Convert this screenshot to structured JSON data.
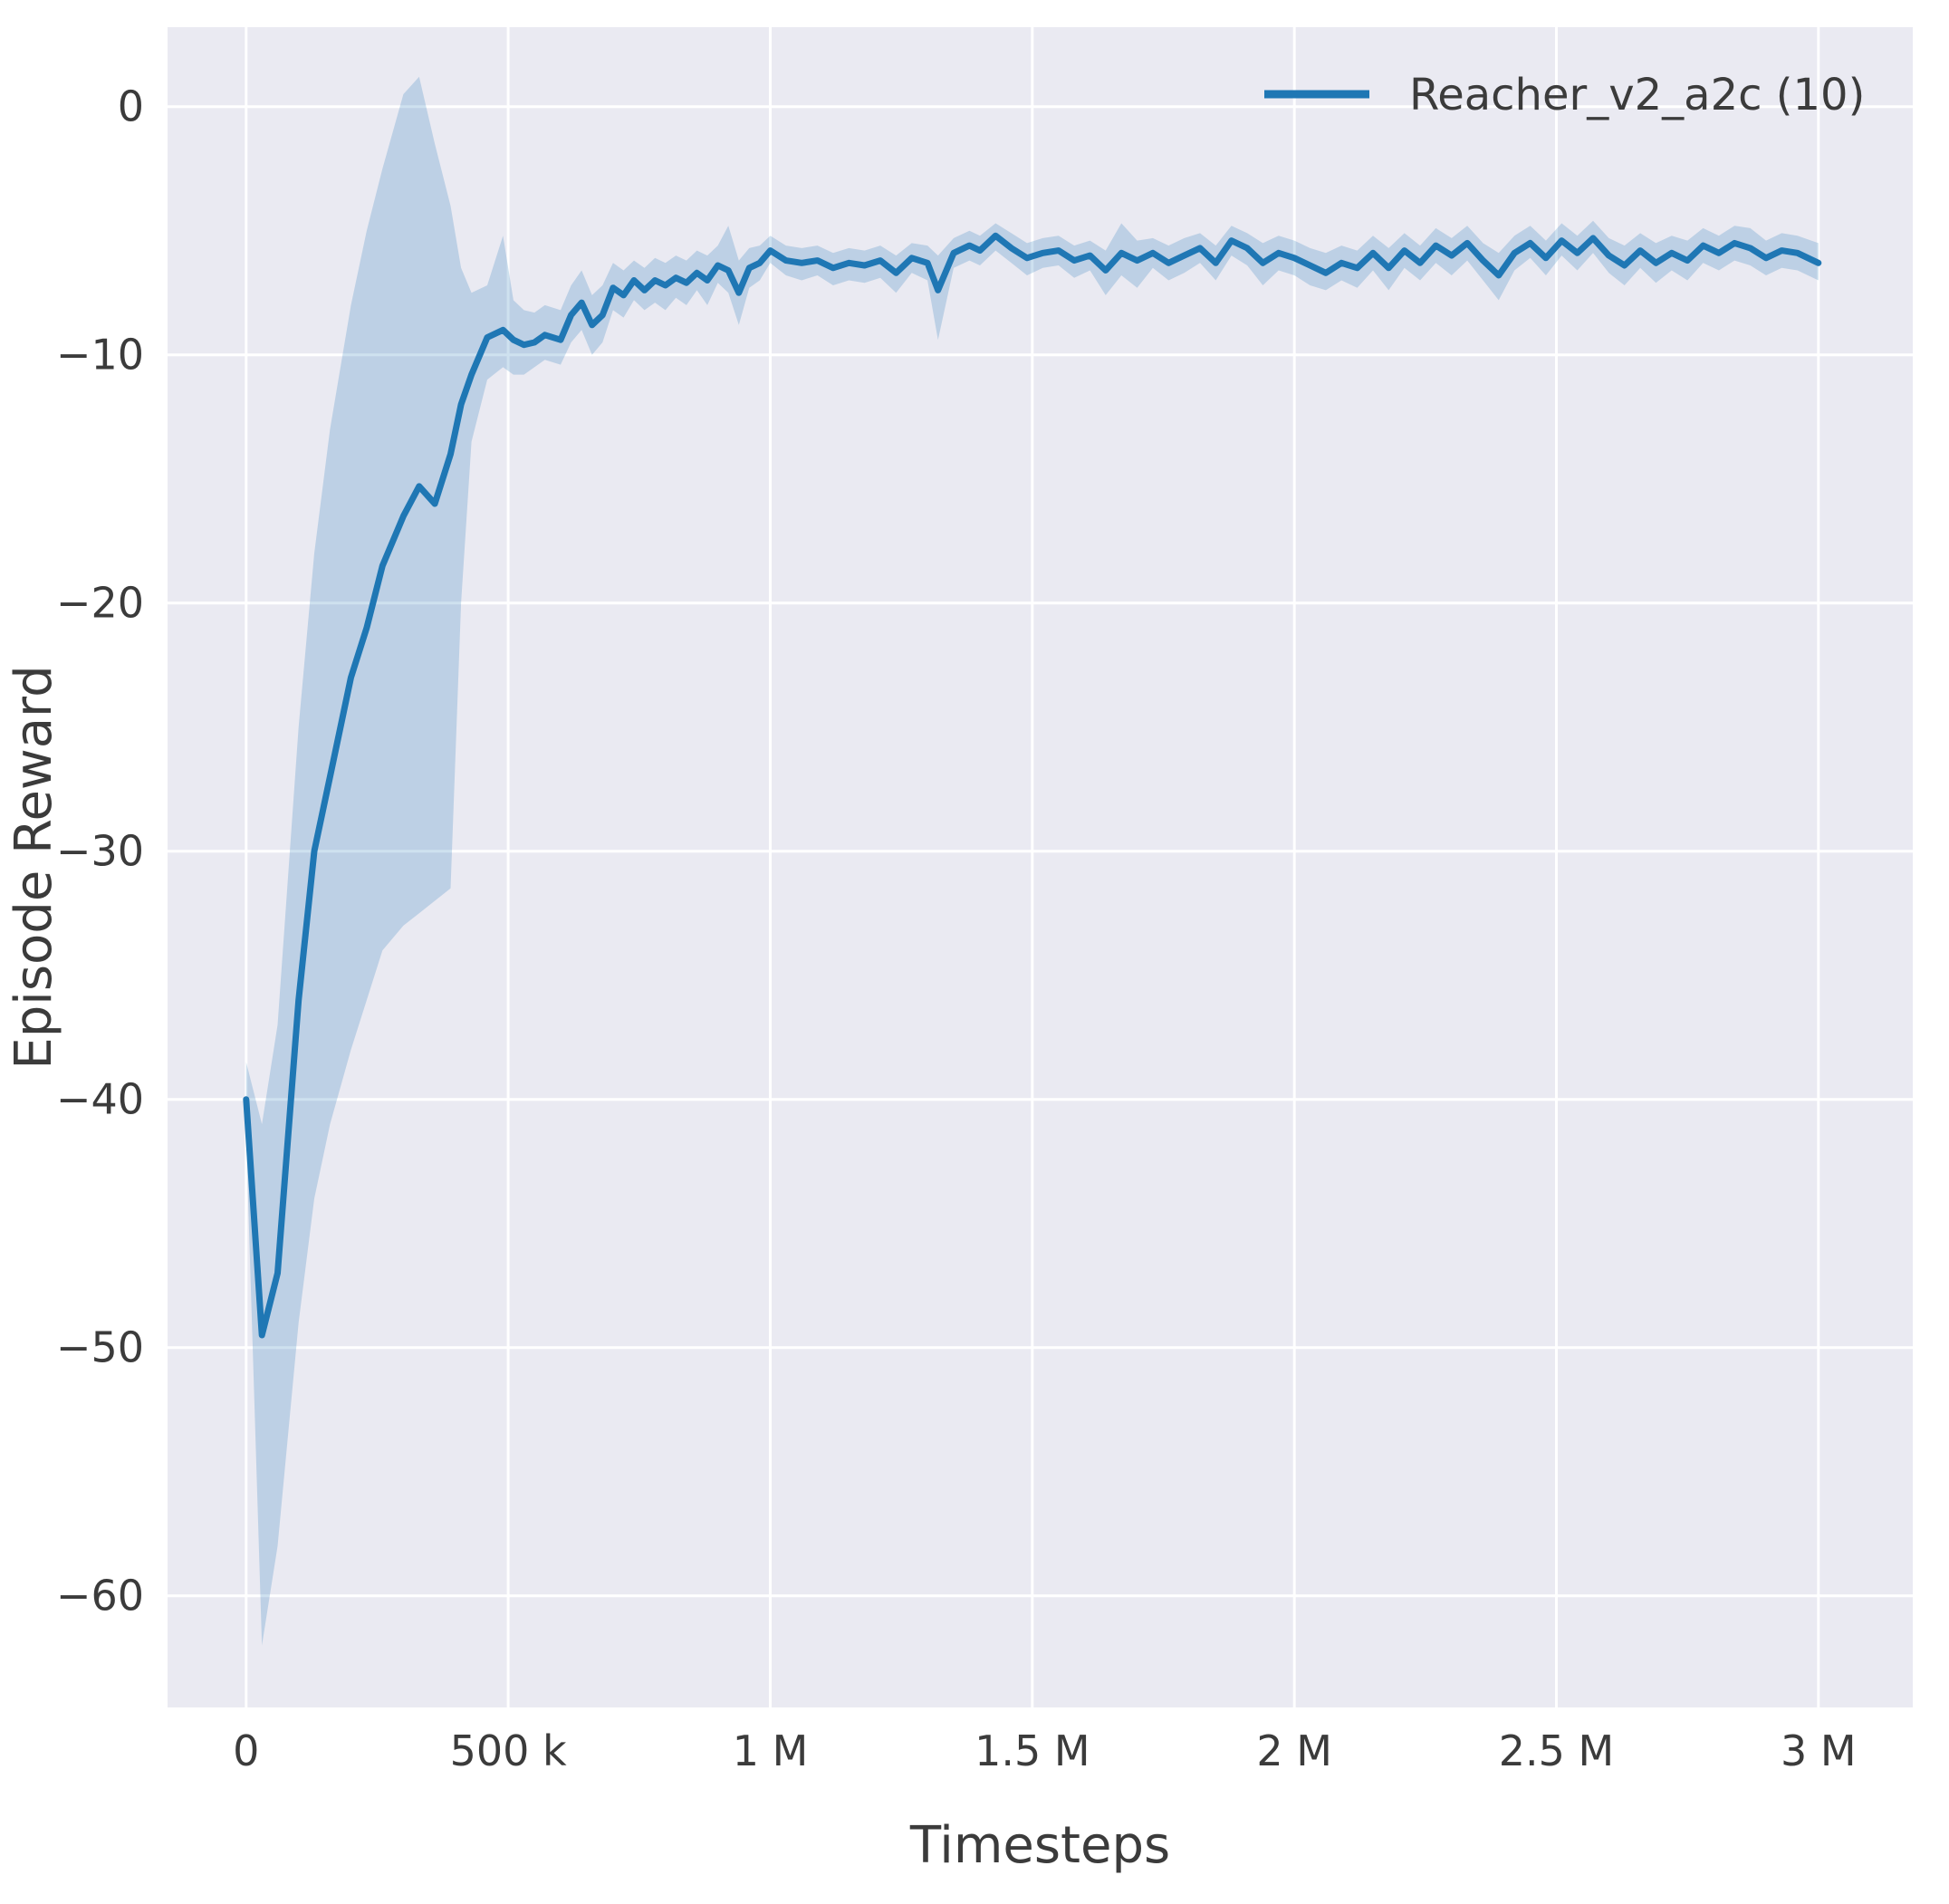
{
  "chart_data": {
    "type": "line",
    "title": "",
    "xlabel": "Timesteps",
    "ylabel": "Episode Reward",
    "grid": true,
    "legend_position": "upper right",
    "legend": [
      {
        "name": "Reacher_v2_a2c (10)",
        "color": "#1f77b4"
      }
    ],
    "colors": {
      "line": "#1f77b4",
      "plot_bg": "#eaeaf2",
      "figure_bg": "#ffffff",
      "grid": "#ffffff",
      "text": "#3b3b3b"
    },
    "xlim": [
      -150000,
      3180000
    ],
    "ylim": [
      -64.5,
      3.2
    ],
    "xticks": [
      {
        "v": 0,
        "label": "0"
      },
      {
        "v": 500000,
        "label": "500 k"
      },
      {
        "v": 1000000,
        "label": "1 M"
      },
      {
        "v": 1500000,
        "label": "1.5 M"
      },
      {
        "v": 2000000,
        "label": "2 M"
      },
      {
        "v": 2500000,
        "label": "2.5 M"
      },
      {
        "v": 3000000,
        "label": "3 M"
      }
    ],
    "yticks": [
      {
        "v": 0,
        "label": "0"
      },
      {
        "v": -10,
        "label": "−10"
      },
      {
        "v": -20,
        "label": "−20"
      },
      {
        "v": -30,
        "label": "−30"
      },
      {
        "v": -40,
        "label": "−40"
      },
      {
        "v": -50,
        "label": "−50"
      },
      {
        "v": -60,
        "label": "−60"
      }
    ],
    "series": [
      {
        "name": "Reacher_v2_a2c (10)",
        "color": "#1f77b4",
        "band_opacity": 0.22,
        "points_format": [
          "x_timesteps",
          "mean",
          "lower",
          "upper"
        ],
        "points": [
          [
            0,
            -40.0,
            -41.5,
            -38.5
          ],
          [
            30000,
            -49.5,
            -62.0,
            -41.0
          ],
          [
            60000,
            -47.0,
            -58.0,
            -37.0
          ],
          [
            100000,
            -36.0,
            -49.0,
            -25.0
          ],
          [
            130000,
            -30.0,
            -44.0,
            -18.0
          ],
          [
            160000,
            -27.0,
            -41.0,
            -13.0
          ],
          [
            200000,
            -23.0,
            -38.0,
            -8.0
          ],
          [
            230000,
            -21.0,
            -36.0,
            -5.0
          ],
          [
            260000,
            -18.5,
            -34.0,
            -2.5
          ],
          [
            300000,
            -16.5,
            -33.0,
            0.5
          ],
          [
            330000,
            -15.3,
            -32.5,
            1.2
          ],
          [
            360000,
            -16.0,
            -32.0,
            -1.5
          ],
          [
            390000,
            -14.0,
            -31.5,
            -4.0
          ],
          [
            410000,
            -12.0,
            -20.0,
            -6.5
          ],
          [
            430000,
            -10.8,
            -13.5,
            -7.5
          ],
          [
            460000,
            -9.3,
            -11.0,
            -7.2
          ],
          [
            490000,
            -9.0,
            -10.5,
            -5.2
          ],
          [
            510000,
            -9.4,
            -10.8,
            -7.8
          ],
          [
            530000,
            -9.6,
            -10.8,
            -8.2
          ],
          [
            550000,
            -9.5,
            -10.5,
            -8.3
          ],
          [
            570000,
            -9.2,
            -10.2,
            -8.0
          ],
          [
            600000,
            -9.4,
            -10.4,
            -8.2
          ],
          [
            620000,
            -8.4,
            -9.5,
            -7.2
          ],
          [
            640000,
            -7.9,
            -9.0,
            -6.6
          ],
          [
            660000,
            -8.8,
            -10.0,
            -7.6
          ],
          [
            680000,
            -8.4,
            -9.5,
            -7.2
          ],
          [
            700000,
            -7.3,
            -8.2,
            -6.3
          ],
          [
            720000,
            -7.6,
            -8.5,
            -6.6
          ],
          [
            740000,
            -7.0,
            -7.8,
            -6.2
          ],
          [
            760000,
            -7.4,
            -8.2,
            -6.5
          ],
          [
            780000,
            -7.0,
            -7.9,
            -6.1
          ],
          [
            800000,
            -7.2,
            -8.2,
            -6.3
          ],
          [
            820000,
            -6.9,
            -7.7,
            -6.0
          ],
          [
            840000,
            -7.1,
            -8.0,
            -6.2
          ],
          [
            860000,
            -6.7,
            -7.4,
            -5.8
          ],
          [
            880000,
            -7.0,
            -8.0,
            -6.0
          ],
          [
            900000,
            -6.4,
            -7.1,
            -5.6
          ],
          [
            920000,
            -6.6,
            -7.5,
            -4.8
          ],
          [
            940000,
            -7.5,
            -8.8,
            -6.2
          ],
          [
            960000,
            -6.5,
            -7.3,
            -5.7
          ],
          [
            980000,
            -6.3,
            -7.0,
            -5.6
          ],
          [
            1000000,
            -5.8,
            -6.3,
            -5.2
          ],
          [
            1030000,
            -6.2,
            -6.8,
            -5.6
          ],
          [
            1060000,
            -6.3,
            -7.0,
            -5.7
          ],
          [
            1090000,
            -6.2,
            -6.8,
            -5.6
          ],
          [
            1120000,
            -6.5,
            -7.2,
            -5.9
          ],
          [
            1150000,
            -6.3,
            -7.0,
            -5.7
          ],
          [
            1180000,
            -6.4,
            -7.1,
            -5.8
          ],
          [
            1210000,
            -6.2,
            -6.9,
            -5.6
          ],
          [
            1240000,
            -6.7,
            -7.5,
            -6.0
          ],
          [
            1270000,
            -6.1,
            -6.7,
            -5.5
          ],
          [
            1300000,
            -6.3,
            -7.0,
            -5.6
          ],
          [
            1320000,
            -7.4,
            -9.4,
            -6.0
          ],
          [
            1350000,
            -5.9,
            -6.5,
            -5.3
          ],
          [
            1380000,
            -5.6,
            -6.2,
            -5.0
          ],
          [
            1400000,
            -5.8,
            -6.4,
            -5.2
          ],
          [
            1430000,
            -5.2,
            -5.8,
            -4.7
          ],
          [
            1460000,
            -5.7,
            -6.3,
            -5.1
          ],
          [
            1490000,
            -6.1,
            -6.8,
            -5.5
          ],
          [
            1520000,
            -5.9,
            -6.5,
            -5.3
          ],
          [
            1550000,
            -5.8,
            -6.4,
            -5.2
          ],
          [
            1580000,
            -6.2,
            -6.9,
            -5.6
          ],
          [
            1610000,
            -6.0,
            -6.6,
            -5.4
          ],
          [
            1640000,
            -6.6,
            -7.6,
            -5.8
          ],
          [
            1670000,
            -5.9,
            -6.8,
            -4.7
          ],
          [
            1700000,
            -6.2,
            -7.3,
            -5.4
          ],
          [
            1730000,
            -5.9,
            -6.5,
            -5.3
          ],
          [
            1760000,
            -6.3,
            -7.0,
            -5.6
          ],
          [
            1790000,
            -6.0,
            -6.7,
            -5.3
          ],
          [
            1820000,
            -5.7,
            -6.3,
            -5.1
          ],
          [
            1850000,
            -6.3,
            -7.0,
            -5.6
          ],
          [
            1880000,
            -5.4,
            -6.0,
            -4.8
          ],
          [
            1910000,
            -5.7,
            -6.4,
            -5.1
          ],
          [
            1940000,
            -6.3,
            -7.2,
            -5.5
          ],
          [
            1970000,
            -5.9,
            -6.6,
            -5.2
          ],
          [
            2000000,
            -6.1,
            -6.8,
            -5.4
          ],
          [
            2030000,
            -6.4,
            -7.2,
            -5.7
          ],
          [
            2060000,
            -6.7,
            -7.4,
            -5.9
          ],
          [
            2090000,
            -6.3,
            -7.0,
            -5.6
          ],
          [
            2120000,
            -6.5,
            -7.3,
            -5.8
          ],
          [
            2150000,
            -5.9,
            -6.6,
            -5.2
          ],
          [
            2180000,
            -6.5,
            -7.4,
            -5.7
          ],
          [
            2210000,
            -5.8,
            -6.5,
            -5.1
          ],
          [
            2240000,
            -6.3,
            -7.0,
            -5.6
          ],
          [
            2270000,
            -5.6,
            -6.3,
            -4.9
          ],
          [
            2300000,
            -6.0,
            -6.8,
            -5.3
          ],
          [
            2330000,
            -5.5,
            -6.2,
            -4.8
          ],
          [
            2360000,
            -6.2,
            -7.0,
            -5.5
          ],
          [
            2390000,
            -6.8,
            -7.8,
            -5.9
          ],
          [
            2420000,
            -5.9,
            -6.6,
            -5.2
          ],
          [
            2450000,
            -5.5,
            -6.1,
            -4.8
          ],
          [
            2480000,
            -6.1,
            -6.8,
            -5.4
          ],
          [
            2510000,
            -5.4,
            -6.0,
            -4.7
          ],
          [
            2540000,
            -5.9,
            -6.6,
            -5.2
          ],
          [
            2570000,
            -5.3,
            -5.9,
            -4.6
          ],
          [
            2600000,
            -6.0,
            -6.7,
            -5.3
          ],
          [
            2630000,
            -6.4,
            -7.2,
            -5.6
          ],
          [
            2660000,
            -5.8,
            -6.5,
            -5.1
          ],
          [
            2690000,
            -6.3,
            -7.1,
            -5.5
          ],
          [
            2720000,
            -5.9,
            -6.6,
            -5.2
          ],
          [
            2750000,
            -6.2,
            -7.0,
            -5.4
          ],
          [
            2780000,
            -5.6,
            -6.3,
            -4.9
          ],
          [
            2810000,
            -5.9,
            -6.6,
            -5.2
          ],
          [
            2840000,
            -5.5,
            -6.2,
            -4.8
          ],
          [
            2870000,
            -5.7,
            -6.4,
            -4.9
          ],
          [
            2900000,
            -6.1,
            -6.8,
            -5.4
          ],
          [
            2930000,
            -5.8,
            -6.5,
            -5.1
          ],
          [
            2960000,
            -5.9,
            -6.6,
            -5.2
          ],
          [
            3000000,
            -6.3,
            -7.0,
            -5.5
          ]
        ]
      }
    ]
  }
}
